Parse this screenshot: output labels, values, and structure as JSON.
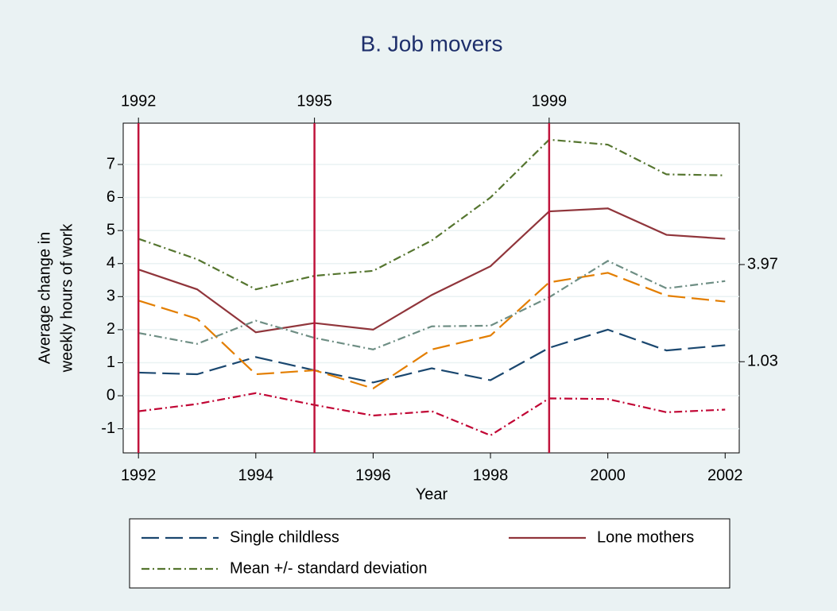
{
  "chart_data": {
    "type": "line",
    "title": "B. Job movers",
    "x_label": "Year",
    "y_label": [
      "Average change in",
      "weekly hours of work"
    ],
    "x": [
      1992,
      1993,
      1994,
      1995,
      1996,
      1997,
      1998,
      1999,
      2000,
      2001,
      2002
    ],
    "xlim": [
      1991.74,
      2002.24
    ],
    "xticks": [
      1992,
      1994,
      1996,
      1998,
      2000,
      2002
    ],
    "ylim": [
      -1.73,
      8.25
    ],
    "yticks": [
      -1,
      0,
      1,
      2,
      3,
      4,
      5,
      6,
      7
    ],
    "y2lim": [
      -1.73,
      8.25
    ],
    "y2ticks": [
      1.03,
      3.97
    ],
    "x2ticks": [
      1992,
      1995,
      1999
    ],
    "x2_line_color": "#c0143c",
    "grid": true,
    "series": [
      {
        "name": "Single childless",
        "color": "#1a476f",
        "style": "dash",
        "values": [
          0.7,
          0.65,
          1.17,
          0.77,
          0.4,
          0.83,
          0.47,
          1.45,
          2.0,
          1.37,
          1.53
        ]
      },
      {
        "name": "Lone mothers",
        "color": "#90353b",
        "style": "solid",
        "values": [
          3.82,
          3.22,
          1.92,
          2.2,
          2.0,
          3.05,
          3.92,
          5.58,
          5.67,
          4.87,
          4.75
        ]
      },
      {
        "name": "Mean +/- standard deviation",
        "color": "#55752f",
        "style": "dashdot",
        "values": [
          4.75,
          4.13,
          3.22,
          3.63,
          3.78,
          4.7,
          6.0,
          7.75,
          7.6,
          6.7,
          6.67
        ]
      },
      {
        "color": "#c10534",
        "style": "dashdot",
        "values": [
          -0.47,
          -0.25,
          0.08,
          -0.28,
          -0.6,
          -0.47,
          -1.2,
          -0.08,
          -0.1,
          -0.5,
          -0.42
        ]
      },
      {
        "color": "#e37e00",
        "style": "dash",
        "values": [
          2.88,
          2.33,
          0.65,
          0.77,
          0.22,
          1.4,
          1.82,
          3.43,
          3.72,
          3.03,
          2.85
        ]
      },
      {
        "color": "#6e8e84",
        "style": "dashdot",
        "values": [
          1.9,
          1.57,
          2.27,
          1.75,
          1.4,
          2.1,
          2.12,
          2.98,
          4.08,
          3.25,
          3.47
        ]
      }
    ]
  }
}
